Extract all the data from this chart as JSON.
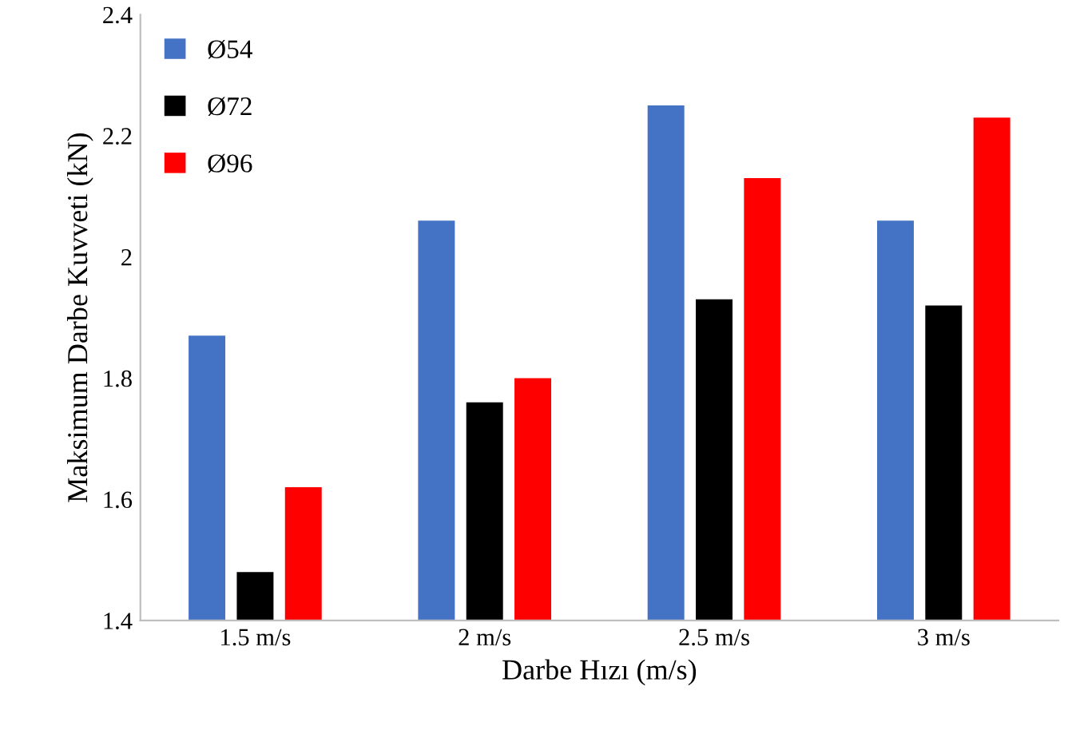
{
  "chart_data": {
    "type": "bar",
    "xlabel": "Darbe Hızı (m/s)",
    "ylabel": "Maksimum Darbe Kuvveti (kN)",
    "categories": [
      "1.5 m/s",
      "2 m/s",
      "2.5 m/s",
      "3 m/s"
    ],
    "series": [
      {
        "name": "Ø54",
        "color": "#4472c4",
        "values": [
          1.87,
          2.06,
          2.25,
          2.06
        ]
      },
      {
        "name": "Ø72",
        "color": "#000000",
        "values": [
          1.48,
          1.76,
          1.93,
          1.92
        ]
      },
      {
        "name": "Ø96",
        "color": "#ff0000",
        "values": [
          1.62,
          1.8,
          2.13,
          2.23
        ]
      }
    ],
    "ylim": [
      1.4,
      2.4
    ],
    "yticks": [
      1.4,
      1.6,
      1.8,
      2,
      2.2,
      2.4
    ],
    "grid": false,
    "legend": "top left"
  }
}
